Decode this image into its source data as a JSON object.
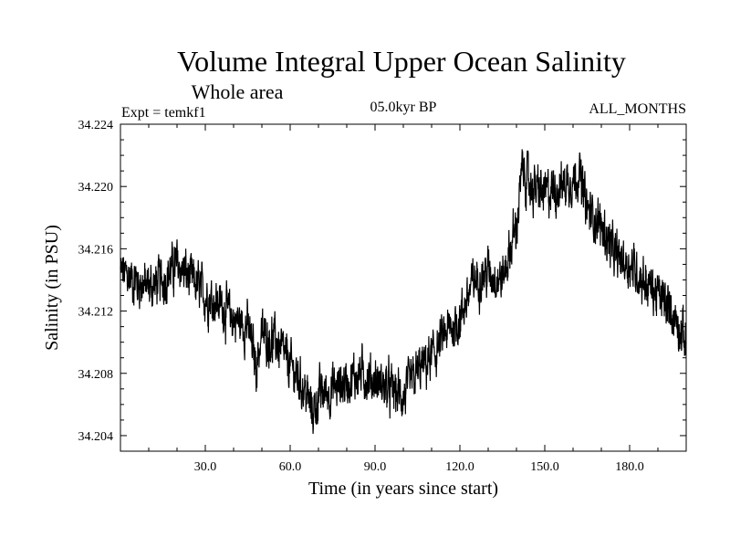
{
  "chart_data": {
    "type": "line",
    "title": "Volume Integral Upper Ocean Salinity",
    "subtitle": "Whole area",
    "experiment": "Expt = temkf1",
    "period": "05.0kyr BP",
    "months": "ALL_MONTHS",
    "xlabel": "Time (in years since start)",
    "ylabel": "Salinity (in PSU)",
    "xlim": [
      0,
      200
    ],
    "ylim": [
      34.203,
      34.224
    ],
    "x_ticks": [
      30,
      60,
      90,
      120,
      150,
      180
    ],
    "x_tick_labels": [
      "30.0",
      "60.0",
      "90.0",
      "120.0",
      "150.0",
      "180.0"
    ],
    "y_ticks": [
      34.204,
      34.208,
      34.212,
      34.216,
      34.22,
      34.224
    ],
    "y_tick_labels": [
      "34.204",
      "34.208",
      "34.212",
      "34.216",
      "34.220",
      "34.224"
    ],
    "series": [
      {
        "name": "salinity",
        "color": "#000000",
        "x": [
          0,
          5,
          10,
          15,
          20,
          25,
          30,
          35,
          40,
          45,
          48,
          50,
          55,
          60,
          65,
          68,
          70,
          75,
          80,
          85,
          90,
          95,
          100,
          105,
          110,
          115,
          120,
          125,
          130,
          135,
          140,
          142,
          145,
          150,
          155,
          160,
          162,
          165,
          170,
          175,
          180,
          185,
          190,
          195,
          200
        ],
        "values": [
          34.2145,
          34.214,
          34.2135,
          34.214,
          34.215,
          34.214,
          34.213,
          34.2125,
          34.2115,
          34.211,
          34.2085,
          34.2105,
          34.21,
          34.2085,
          34.207,
          34.2055,
          34.2065,
          34.207,
          34.2075,
          34.208,
          34.2075,
          34.207,
          34.2065,
          34.208,
          34.209,
          34.2105,
          34.2115,
          34.214,
          34.2145,
          34.214,
          34.2175,
          34.221,
          34.22,
          34.2195,
          34.22,
          34.2205,
          34.221,
          34.2185,
          34.2175,
          34.2155,
          34.215,
          34.214,
          34.213,
          34.212,
          34.21
        ]
      }
    ]
  }
}
